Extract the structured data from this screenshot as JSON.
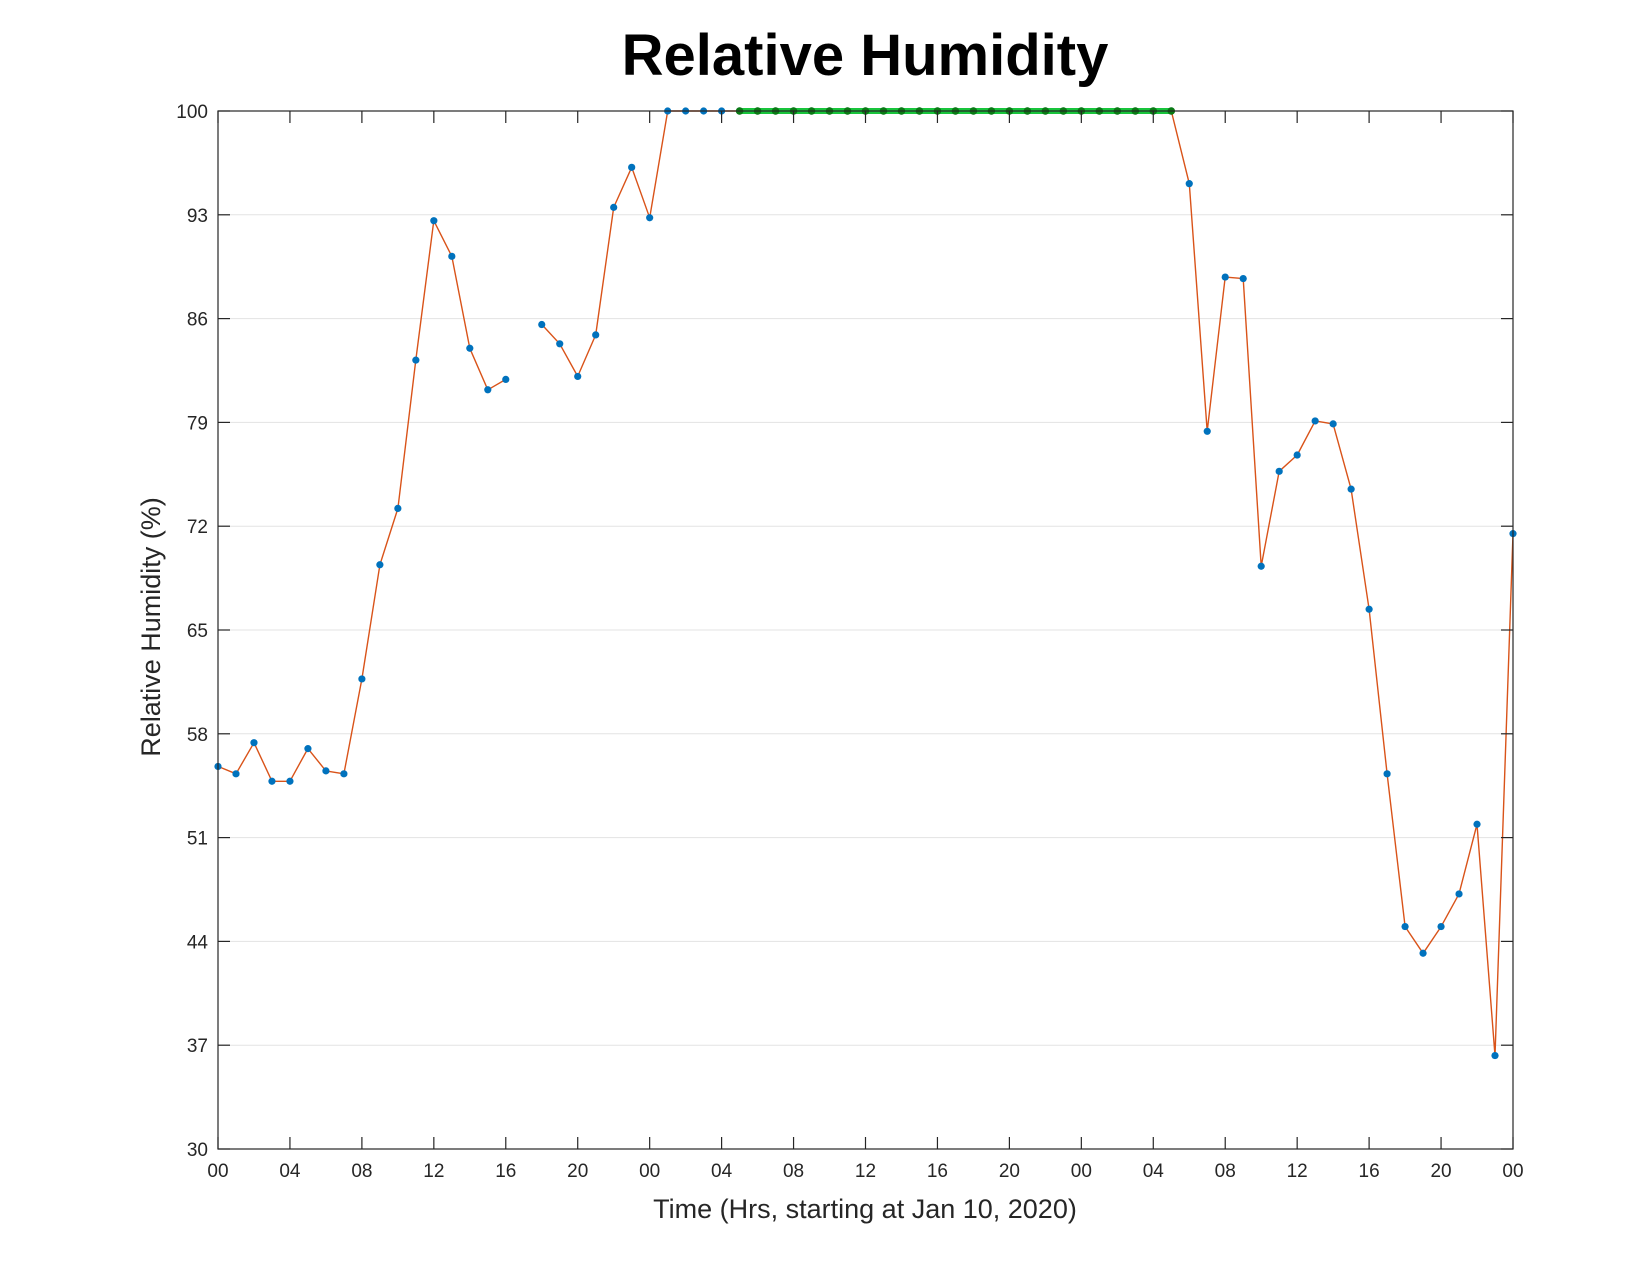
{
  "chart_data": {
    "type": "line",
    "title": "Relative Humidity",
    "xlabel": "Time (Hrs, starting at Jan 10, 2020)",
    "ylabel": "Relative Humidity (%)",
    "x_unit": "hours",
    "xlim": [
      0,
      72
    ],
    "ylim": [
      30,
      100
    ],
    "grid": "y",
    "yticks": [
      30,
      37,
      44,
      51,
      58,
      65,
      72,
      79,
      86,
      93,
      100
    ],
    "xticks": [
      {
        "x": 0,
        "label": "00"
      },
      {
        "x": 4,
        "label": "04"
      },
      {
        "x": 8,
        "label": "08"
      },
      {
        "x": 12,
        "label": "12"
      },
      {
        "x": 16,
        "label": "16"
      },
      {
        "x": 20,
        "label": "20"
      },
      {
        "x": 24,
        "label": "00"
      },
      {
        "x": 28,
        "label": "04"
      },
      {
        "x": 32,
        "label": "08"
      },
      {
        "x": 36,
        "label": "12"
      },
      {
        "x": 40,
        "label": "16"
      },
      {
        "x": 44,
        "label": "20"
      },
      {
        "x": 48,
        "label": "00"
      },
      {
        "x": 52,
        "label": "04"
      },
      {
        "x": 56,
        "label": "08"
      },
      {
        "x": 60,
        "label": "12"
      },
      {
        "x": 64,
        "label": "16"
      },
      {
        "x": 68,
        "label": "20"
      },
      {
        "x": 72,
        "label": "00"
      }
    ],
    "colors": {
      "line": "#d95319",
      "marker": "#0072bd",
      "highlight_line": "#19c43c",
      "highlight_marker": "#0a7a14",
      "grid": "#e3e3e3",
      "axis": "#262626"
    },
    "series": [
      {
        "role": "measurements",
        "x": [
          0,
          1,
          2,
          3,
          4,
          5,
          6,
          7,
          8,
          9,
          10,
          11,
          12,
          13,
          14,
          15,
          16,
          18,
          19,
          20,
          21,
          22,
          23,
          24,
          25,
          26,
          27,
          28,
          29,
          30,
          31,
          32,
          33,
          34,
          35,
          36,
          37,
          38,
          39,
          40,
          41,
          42,
          43,
          44,
          45,
          46,
          47,
          48,
          49,
          50,
          51,
          52,
          53,
          54,
          55,
          56,
          57,
          58,
          59,
          60,
          61,
          62,
          63,
          64,
          65,
          66,
          67,
          68,
          69,
          70,
          71,
          72
        ],
        "y": [
          55.8,
          55.3,
          57.4,
          54.8,
          54.8,
          57.0,
          55.5,
          55.3,
          61.7,
          69.4,
          73.2,
          83.2,
          92.6,
          90.2,
          84.0,
          81.2,
          81.9,
          85.6,
          84.3,
          82.1,
          84.9,
          93.5,
          96.2,
          92.8,
          100,
          100,
          100,
          100,
          100,
          100,
          100,
          100,
          100,
          100,
          100,
          100,
          100,
          100,
          100,
          100,
          100,
          100,
          100,
          100,
          100,
          100,
          100,
          100,
          100,
          100,
          100,
          100,
          100,
          95.1,
          78.4,
          88.8,
          88.7,
          69.3,
          75.7,
          76.8,
          79.1,
          78.9,
          74.5,
          66.4,
          55.3,
          45.0,
          43.2,
          45.0,
          47.2,
          51.9,
          36.3,
          71.5
        ]
      },
      {
        "role": "highlight",
        "x": [
          29,
          30,
          31,
          32,
          33,
          34,
          35,
          36,
          37,
          38,
          39,
          40,
          41,
          42,
          43,
          44,
          45,
          46,
          47,
          48,
          49,
          50,
          51,
          52,
          53
        ],
        "y": [
          100,
          100,
          100,
          100,
          100,
          100,
          100,
          100,
          100,
          100,
          100,
          100,
          100,
          100,
          100,
          100,
          100,
          100,
          100,
          100,
          100,
          100,
          100,
          100,
          100
        ]
      }
    ]
  }
}
